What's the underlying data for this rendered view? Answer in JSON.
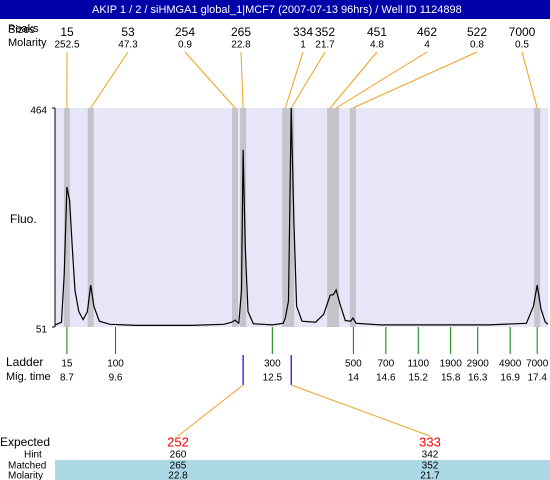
{
  "chart_data": {
    "type": "electropherogram",
    "title": "AKIP 1 / 2 / siHMGA1 global_1|MCF7 (2007-07-13 96hrs) / Well ID 1124898",
    "peaks_label": "Peaks",
    "sizes_label": "Sizes",
    "molarity_label": "Molarity",
    "y_label": "Fluo.",
    "ylim": [
      51,
      464
    ],
    "yticks": [
      51,
      464
    ],
    "xlim": [
      8.48,
      17.6
    ],
    "plot_color": "#e6e6f8",
    "band_color": "#c4c4cc",
    "link_color": "#f0a020",
    "peaks": {
      "sizes": [
        15,
        53,
        254,
        265,
        334,
        352,
        451,
        462,
        522,
        7000
      ],
      "molarities": [
        252.5,
        47.3,
        0.9,
        22.8,
        1,
        21.7,
        4.8,
        4,
        0.8,
        0.5
      ],
      "times": [
        8.7,
        9.14,
        11.81,
        11.96,
        12.74,
        12.85,
        13.57,
        13.68,
        13.99,
        17.4
      ]
    },
    "trace": {
      "color": "#000000",
      "x": [
        8.48,
        8.6,
        8.65,
        8.7,
        8.75,
        8.8,
        8.85,
        8.92,
        9.0,
        9.08,
        9.14,
        9.2,
        9.3,
        9.5,
        10,
        11,
        11.6,
        11.75,
        11.81,
        11.88,
        11.93,
        11.96,
        12.0,
        12.05,
        12.15,
        12.5,
        12.7,
        12.74,
        12.8,
        12.85,
        12.9,
        12.95,
        13.05,
        13.3,
        13.45,
        13.57,
        13.63,
        13.68,
        13.75,
        13.85,
        13.95,
        13.99,
        14.05,
        14.5,
        15.5,
        16.5,
        17.2,
        17.33,
        17.4,
        17.47,
        17.55,
        17.6
      ],
      "y": [
        55,
        60,
        150,
        315,
        290,
        200,
        120,
        80,
        65,
        80,
        130,
        90,
        62,
        56,
        54,
        54,
        56,
        60,
        64,
        58,
        120,
        385,
        200,
        80,
        57,
        55,
        58,
        68,
        100,
        464,
        250,
        90,
        62,
        60,
        75,
        111,
        112,
        121,
        95,
        63,
        62,
        68,
        58,
        55,
        55,
        55,
        58,
        90,
        130,
        85,
        60,
        56
      ]
    },
    "ladder": {
      "label": "Ladder",
      "time_label": "Mig. time",
      "color": "#008000",
      "sizes": [
        15,
        100,
        300,
        500,
        700,
        1100,
        1900,
        2900,
        4900,
        7000
      ],
      "times": [
        8.7,
        9.6,
        12.5,
        14,
        14.6,
        15.2,
        15.8,
        16.3,
        16.9,
        17.4
      ]
    },
    "expected": {
      "label": "Expected",
      "hint_label": "Hint",
      "matched_label": "Matched",
      "molarity_label": "Molarity",
      "expected": [
        252,
        333
      ],
      "hint": [
        260,
        342
      ],
      "matched": [
        265,
        352
      ],
      "molarity": [
        22.8,
        21.7
      ],
      "times": [
        11.96,
        12.85
      ],
      "marker_color": "#0000ff",
      "expected_color": "#ff0000",
      "row_color": "#add8e6"
    }
  }
}
